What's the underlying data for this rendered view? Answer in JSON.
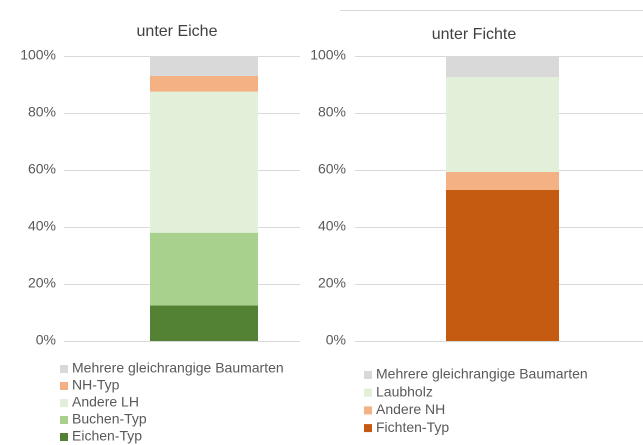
{
  "chart_data": [
    {
      "type": "stacked_bar",
      "title": "unter Eiche",
      "ylim": [
        0,
        100
      ],
      "yticks": [
        {
          "value": 0,
          "label": "0%"
        },
        {
          "value": 20,
          "label": "20%"
        },
        {
          "value": 40,
          "label": "40%"
        },
        {
          "value": 60,
          "label": "60%"
        },
        {
          "value": 80,
          "label": "80%"
        },
        {
          "value": 100,
          "label": "100%"
        }
      ],
      "grid": true,
      "series": [
        {
          "name": "Eichen-Typ",
          "color": "#548235",
          "values": [
            12.5
          ]
        },
        {
          "name": "Buchen-Typ",
          "color": "#a9d18e",
          "values": [
            25.5
          ]
        },
        {
          "name": "Andere LH",
          "color": "#e2f0d9",
          "values": [
            49.5
          ]
        },
        {
          "name": "NH-Typ",
          "color": "#f4b183",
          "values": [
            5.5
          ]
        },
        {
          "name": "Mehrere gleichrangige Baumarten",
          "color": "#d9d9d9",
          "values": [
            7
          ]
        }
      ]
    },
    {
      "type": "stacked_bar",
      "title": "unter Fichte",
      "ylim": [
        0,
        100
      ],
      "yticks": [
        {
          "value": 0,
          "label": "0%"
        },
        {
          "value": 20,
          "label": "20%"
        },
        {
          "value": 40,
          "label": "40%"
        },
        {
          "value": 60,
          "label": "60%"
        },
        {
          "value": 80,
          "label": "80%"
        },
        {
          "value": 100,
          "label": "100%"
        }
      ],
      "grid": true,
      "series": [
        {
          "name": "Fichten-Typ",
          "color": "#c55a11",
          "values": [
            53
          ]
        },
        {
          "name": "Andere NH",
          "color": "#f4b183",
          "values": [
            6.3
          ]
        },
        {
          "name": "Laubholz",
          "color": "#e2f0d9",
          "values": [
            33.3
          ]
        },
        {
          "name": "Mehrere gleichrangige Baumarten",
          "color": "#d9d9d9",
          "values": [
            7.4
          ]
        }
      ]
    }
  ]
}
